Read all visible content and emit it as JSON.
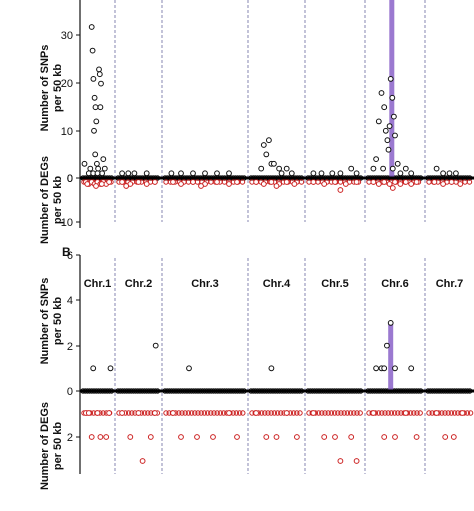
{
  "chart_data": [
    {
      "type": "scatter",
      "panel_label": "",
      "ylabel_top": [
        "Number of SNPs",
        "per 50 kb"
      ],
      "ylabel_bottom": [
        "Number of DEGs",
        "per 50 kb"
      ],
      "ylim_snp": [
        0,
        40
      ],
      "ylim_deg": [
        0,
        10
      ],
      "yticks_snp": [
        "30",
        "20",
        "10",
        "0"
      ],
      "yticks_deg": [
        "0",
        "10"
      ],
      "colors": {
        "snp": "#111111",
        "deg": "#cc2222",
        "highlight_bar": "#8a62c8",
        "divider": "#7a7aaa"
      },
      "chromosomes": [
        {
          "name": "Chr.1",
          "snp_points": [
            [
              0.3,
              32
            ],
            [
              0.33,
              27
            ],
            [
              0.36,
              21
            ],
            [
              0.4,
              17
            ],
            [
              0.43,
              15
            ],
            [
              0.46,
              12
            ],
            [
              0.38,
              10
            ],
            [
              0.55,
              23
            ],
            [
              0.58,
              22
            ],
            [
              0.62,
              20
            ],
            [
              0.6,
              15
            ],
            [
              0.05,
              3
            ],
            [
              0.2,
              1
            ],
            [
              0.25,
              2
            ],
            [
              0.42,
              5
            ],
            [
              0.48,
              3
            ],
            [
              0.52,
              2
            ],
            [
              0.66,
              1
            ],
            [
              0.7,
              4
            ],
            [
              0.75,
              2
            ],
            [
              0.35,
              1
            ],
            [
              0.5,
              1
            ]
          ],
          "deg_points": [
            [
              0.1,
              1
            ],
            [
              0.2,
              1.5
            ],
            [
              0.3,
              1
            ],
            [
              0.4,
              1.5
            ],
            [
              0.5,
              1
            ],
            [
              0.6,
              1.5
            ],
            [
              0.7,
              1
            ],
            [
              0.8,
              1.5
            ],
            [
              0.9,
              1
            ],
            [
              0.15,
              1.5
            ],
            [
              0.45,
              2
            ],
            [
              0.65,
              1.5
            ]
          ]
        },
        {
          "name": "Chr.2",
          "snp_points": [
            [
              0.1,
              1
            ],
            [
              0.25,
              1
            ],
            [
              0.4,
              1
            ],
            [
              0.7,
              1
            ]
          ],
          "deg_points": [
            [
              0.1,
              1
            ],
            [
              0.3,
              1.5
            ],
            [
              0.5,
              1
            ],
            [
              0.7,
              1.5
            ],
            [
              0.9,
              1
            ],
            [
              0.2,
              2
            ]
          ]
        },
        {
          "name": "Chr.3",
          "snp_points": [
            [
              0.08,
              1
            ],
            [
              0.2,
              1
            ],
            [
              0.35,
              1
            ],
            [
              0.5,
              1
            ],
            [
              0.65,
              1
            ],
            [
              0.8,
              1
            ]
          ],
          "deg_points": [
            [
              0.1,
              1
            ],
            [
              0.2,
              1.5
            ],
            [
              0.35,
              1
            ],
            [
              0.5,
              1.5
            ],
            [
              0.65,
              1
            ],
            [
              0.8,
              1.5
            ],
            [
              0.9,
              1
            ],
            [
              0.45,
              2
            ]
          ]
        },
        {
          "name": "Chr.4",
          "snp_points": [
            [
              0.25,
              7
            ],
            [
              0.35,
              8
            ],
            [
              0.3,
              5
            ],
            [
              0.4,
              3
            ],
            [
              0.45,
              3
            ],
            [
              0.55,
              2
            ],
            [
              0.2,
              2
            ],
            [
              0.6,
              1
            ],
            [
              0.7,
              2
            ],
            [
              0.8,
              1
            ]
          ],
          "deg_points": [
            [
              0.1,
              1
            ],
            [
              0.25,
              1.5
            ],
            [
              0.4,
              1
            ],
            [
              0.55,
              1.5
            ],
            [
              0.7,
              1
            ],
            [
              0.85,
              1.5
            ],
            [
              0.5,
              2
            ]
          ]
        },
        {
          "name": "Chr.5",
          "snp_points": [
            [
              0.1,
              1
            ],
            [
              0.25,
              1
            ],
            [
              0.45,
              1
            ],
            [
              0.6,
              1
            ],
            [
              0.8,
              2
            ],
            [
              0.9,
              1
            ]
          ],
          "deg_points": [
            [
              0.1,
              1
            ],
            [
              0.3,
              1.5
            ],
            [
              0.5,
              1
            ],
            [
              0.7,
              1.5
            ],
            [
              0.9,
              1
            ],
            [
              0.6,
              3
            ]
          ]
        },
        {
          "name": "Chr.6",
          "snp_points": [
            [
              0.15,
              4
            ],
            [
              0.2,
              12
            ],
            [
              0.25,
              18
            ],
            [
              0.3,
              15
            ],
            [
              0.33,
              10
            ],
            [
              0.36,
              8
            ],
            [
              0.4,
              11
            ],
            [
              0.42,
              21
            ],
            [
              0.45,
              17
            ],
            [
              0.48,
              13
            ],
            [
              0.5,
              9
            ],
            [
              0.38,
              6
            ],
            [
              0.1,
              2
            ],
            [
              0.55,
              3
            ],
            [
              0.6,
              1
            ],
            [
              0.7,
              2
            ],
            [
              0.8,
              1
            ],
            [
              0.28,
              2
            ],
            [
              0.46,
              2
            ]
          ],
          "deg_points": [
            [
              0.1,
              1
            ],
            [
              0.2,
              1.5
            ],
            [
              0.3,
              1
            ],
            [
              0.4,
              1.5
            ],
            [
              0.5,
              1
            ],
            [
              0.6,
              1.5
            ],
            [
              0.7,
              1
            ],
            [
              0.8,
              1.5
            ],
            [
              0.9,
              1
            ],
            [
              0.46,
              2.5
            ]
          ],
          "highlight": {
            "x": 0.44,
            "y_top": 42
          }
        },
        {
          "name": "Chr.7",
          "snp_points": [
            [
              0.2,
              2
            ],
            [
              0.35,
              1
            ],
            [
              0.5,
              1
            ],
            [
              0.65,
              1
            ]
          ],
          "deg_points": [
            [
              0.15,
              1
            ],
            [
              0.35,
              1.5
            ],
            [
              0.55,
              1
            ],
            [
              0.75,
              1.5
            ]
          ]
        }
      ]
    },
    {
      "type": "scatter",
      "panel_label": "B",
      "ylabel_top": [
        "Number of SNPs",
        "per 50 kb"
      ],
      "ylabel_bottom": [
        "Number of DEGs",
        "per 50 kb"
      ],
      "ylim_snp": [
        0,
        6
      ],
      "ylim_deg": [
        0,
        4
      ],
      "yticks_snp": [
        "6",
        "4",
        "2",
        "0"
      ],
      "yticks_deg": [
        "2"
      ],
      "colors": {
        "snp": "#111111",
        "deg": "#cc2222",
        "highlight_bar": "#8a62c8",
        "divider": "#7a7aaa"
      },
      "chromosomes": [
        {
          "name": "Chr.1",
          "snp_points": [
            [
              0.35,
              1
            ],
            [
              0.95,
              1
            ]
          ],
          "deg_points": [
            [
              0.1,
              1
            ],
            [
              0.2,
              1
            ],
            [
              0.3,
              2
            ],
            [
              0.5,
              1
            ],
            [
              0.6,
              2
            ],
            [
              0.8,
              2
            ],
            [
              0.9,
              1
            ]
          ]
        },
        {
          "name": "Chr.2",
          "snp_points": [
            [
              0.92,
              2
            ]
          ],
          "deg_points": [
            [
              0.1,
              1
            ],
            [
              0.3,
              2
            ],
            [
              0.5,
              1
            ],
            [
              0.6,
              3
            ],
            [
              0.8,
              2
            ],
            [
              0.9,
              1
            ]
          ]
        },
        {
          "name": "Chr.3",
          "snp_points": [
            [
              0.3,
              1
            ]
          ],
          "deg_points": [
            [
              0.1,
              1
            ],
            [
              0.2,
              2
            ],
            [
              0.4,
              2
            ],
            [
              0.6,
              2
            ],
            [
              0.8,
              1
            ],
            [
              0.9,
              2
            ]
          ]
        },
        {
          "name": "Chr.4",
          "snp_points": [
            [
              0.4,
              1
            ]
          ],
          "deg_points": [
            [
              0.1,
              1
            ],
            [
              0.3,
              2
            ],
            [
              0.5,
              2
            ],
            [
              0.7,
              1
            ],
            [
              0.9,
              2
            ]
          ]
        },
        {
          "name": "Chr.5",
          "snp_points": [],
          "deg_points": [
            [
              0.1,
              1
            ],
            [
              0.3,
              2
            ],
            [
              0.5,
              2
            ],
            [
              0.6,
              3
            ],
            [
              0.8,
              2
            ],
            [
              0.9,
              3
            ]
          ]
        },
        {
          "name": "Chr.6",
          "snp_points": [
            [
              0.15,
              1
            ],
            [
              0.25,
              1
            ],
            [
              0.35,
              2
            ],
            [
              0.42,
              3
            ],
            [
              0.3,
              1
            ],
            [
              0.5,
              1
            ],
            [
              0.8,
              1
            ]
          ],
          "deg_points": [
            [
              0.1,
              1
            ],
            [
              0.3,
              2
            ],
            [
              0.5,
              2
            ],
            [
              0.7,
              1
            ],
            [
              0.9,
              2
            ]
          ],
          "highlight": {
            "x": 0.42,
            "y_top": 3
          }
        },
        {
          "name": "Chr.7",
          "snp_points": [],
          "deg_points": [
            [
              0.2,
              1
            ],
            [
              0.4,
              2
            ],
            [
              0.6,
              2
            ],
            [
              0.8,
              1
            ]
          ]
        }
      ]
    }
  ]
}
